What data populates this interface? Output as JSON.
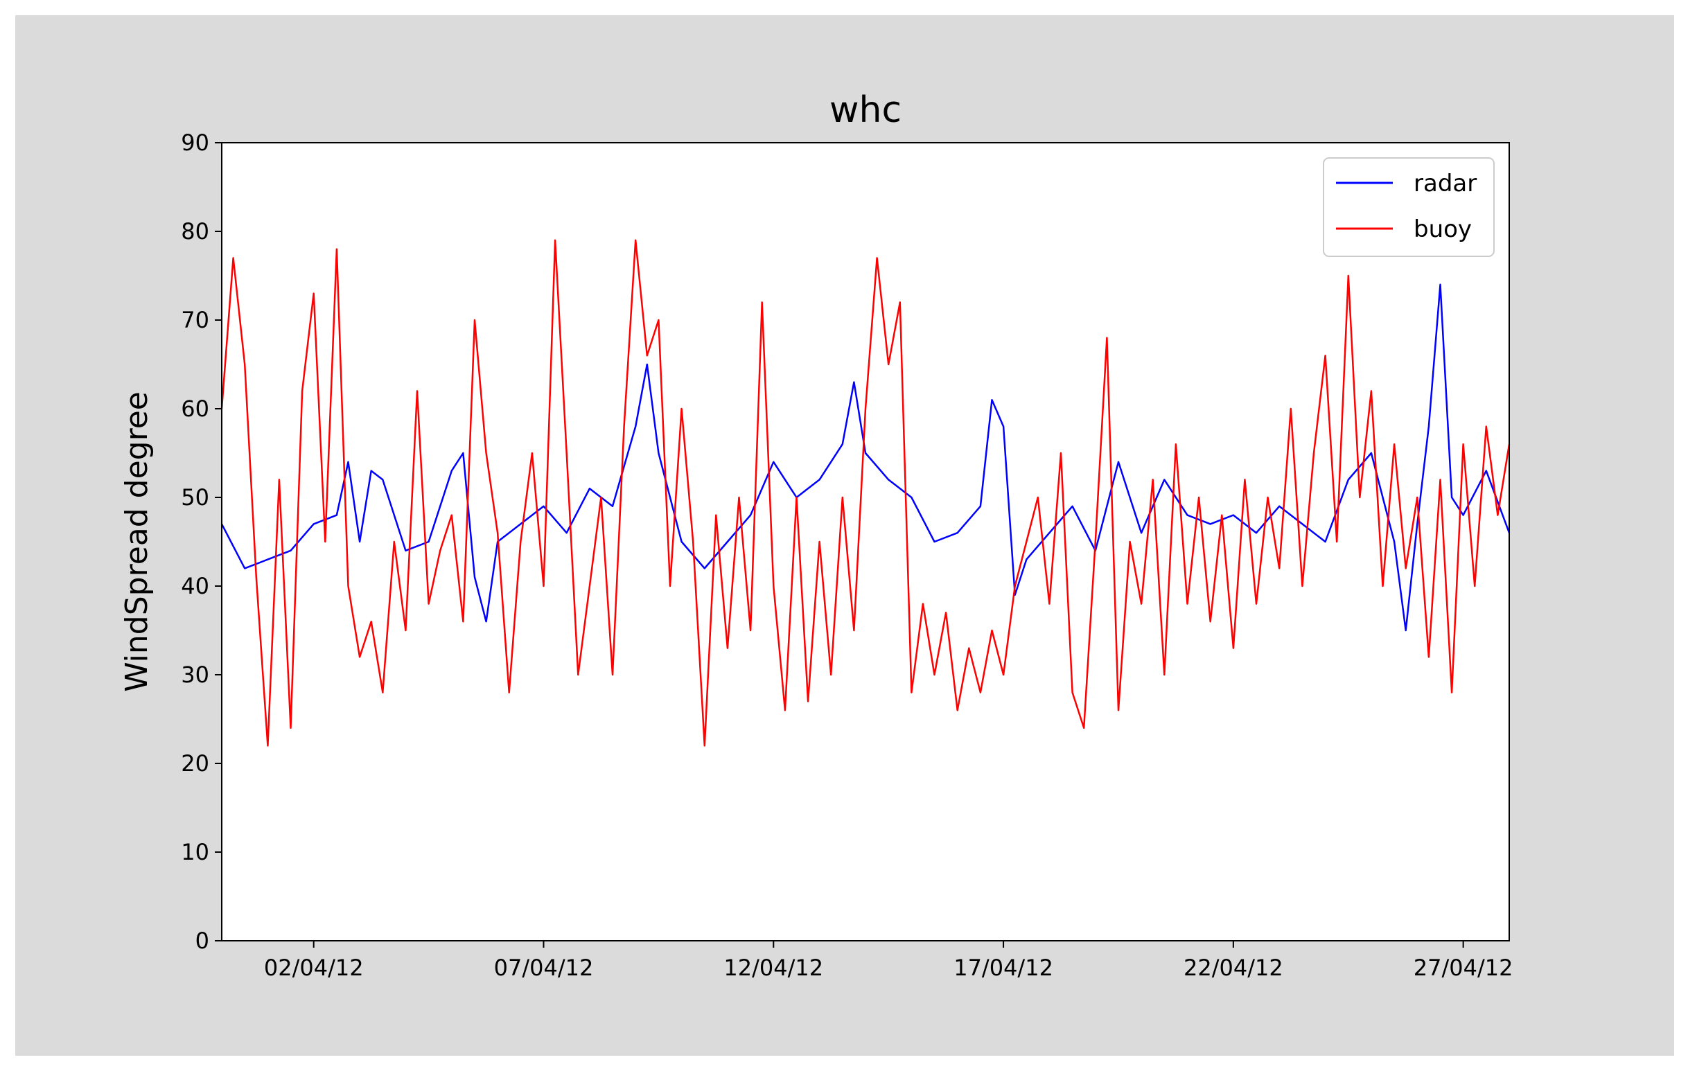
{
  "chart_data": {
    "type": "line",
    "title": "whc",
    "xlabel": "",
    "ylabel": "WindSpread degree",
    "x_axis": {
      "type": "date",
      "range": [
        "2012-03-31T00:00",
        "2012-04-28T00:00"
      ],
      "ticks": [
        {
          "date": "2012-04-02",
          "label": "02/04/12"
        },
        {
          "date": "2012-04-07",
          "label": "07/04/12"
        },
        {
          "date": "2012-04-12",
          "label": "12/04/12"
        },
        {
          "date": "2012-04-17",
          "label": "17/04/12"
        },
        {
          "date": "2012-04-22",
          "label": "22/04/12"
        },
        {
          "date": "2012-04-27",
          "label": "27/04/12"
        }
      ]
    },
    "ylim": [
      0,
      90
    ],
    "yticks": [
      "0",
      "10",
      "20",
      "30",
      "40",
      "50",
      "60",
      "70",
      "80",
      "90"
    ],
    "grid": false,
    "legend": {
      "position": "top-right",
      "entries": [
        "radar",
        "buoy"
      ]
    },
    "series": [
      {
        "name": "radar",
        "color": "#0000ff",
        "points": [
          [
            "2012-03-31T00:00",
            47
          ],
          [
            "2012-03-31T12:00",
            42
          ],
          [
            "2012-04-01T00:00",
            43
          ],
          [
            "2012-04-01T12:00",
            44
          ],
          [
            "2012-04-02T00:00",
            47
          ],
          [
            "2012-04-02T12:00",
            48
          ],
          [
            "2012-04-02T18:00",
            54
          ],
          [
            "2012-04-03T00:00",
            45
          ],
          [
            "2012-04-03T06:00",
            53
          ],
          [
            "2012-04-03T12:00",
            52
          ],
          [
            "2012-04-04T00:00",
            44
          ],
          [
            "2012-04-04T12:00",
            45
          ],
          [
            "2012-04-05T00:00",
            53
          ],
          [
            "2012-04-05T06:00",
            55
          ],
          [
            "2012-04-05T12:00",
            41
          ],
          [
            "2012-04-05T18:00",
            36
          ],
          [
            "2012-04-06T00:00",
            45
          ],
          [
            "2012-04-06T12:00",
            47
          ],
          [
            "2012-04-07T00:00",
            49
          ],
          [
            "2012-04-07T12:00",
            46
          ],
          [
            "2012-04-08T00:00",
            51
          ],
          [
            "2012-04-08T12:00",
            49
          ],
          [
            "2012-04-09T00:00",
            58
          ],
          [
            "2012-04-09T06:00",
            65
          ],
          [
            "2012-04-09T12:00",
            55
          ],
          [
            "2012-04-10T00:00",
            45
          ],
          [
            "2012-04-10T12:00",
            42
          ],
          [
            "2012-04-11T00:00",
            45
          ],
          [
            "2012-04-11T12:00",
            48
          ],
          [
            "2012-04-12T00:00",
            54
          ],
          [
            "2012-04-12T12:00",
            50
          ],
          [
            "2012-04-13T00:00",
            52
          ],
          [
            "2012-04-13T12:00",
            56
          ],
          [
            "2012-04-13T18:00",
            63
          ],
          [
            "2012-04-14T00:00",
            55
          ],
          [
            "2012-04-14T12:00",
            52
          ],
          [
            "2012-04-15T00:00",
            50
          ],
          [
            "2012-04-15T12:00",
            45
          ],
          [
            "2012-04-16T00:00",
            46
          ],
          [
            "2012-04-16T12:00",
            49
          ],
          [
            "2012-04-16T18:00",
            61
          ],
          [
            "2012-04-17T00:00",
            58
          ],
          [
            "2012-04-17T06:00",
            39
          ],
          [
            "2012-04-17T12:00",
            43
          ],
          [
            "2012-04-18T00:00",
            46
          ],
          [
            "2012-04-18T12:00",
            49
          ],
          [
            "2012-04-19T00:00",
            44
          ],
          [
            "2012-04-19T12:00",
            54
          ],
          [
            "2012-04-20T00:00",
            46
          ],
          [
            "2012-04-20T12:00",
            52
          ],
          [
            "2012-04-21T00:00",
            48
          ],
          [
            "2012-04-21T12:00",
            47
          ],
          [
            "2012-04-22T00:00",
            48
          ],
          [
            "2012-04-22T12:00",
            46
          ],
          [
            "2012-04-23T00:00",
            49
          ],
          [
            "2012-04-23T12:00",
            47
          ],
          [
            "2012-04-24T00:00",
            45
          ],
          [
            "2012-04-24T12:00",
            52
          ],
          [
            "2012-04-25T00:00",
            55
          ],
          [
            "2012-04-25T12:00",
            45
          ],
          [
            "2012-04-25T18:00",
            35
          ],
          [
            "2012-04-26T00:00",
            47
          ],
          [
            "2012-04-26T06:00",
            58
          ],
          [
            "2012-04-26T12:00",
            74
          ],
          [
            "2012-04-26T18:00",
            50
          ],
          [
            "2012-04-27T00:00",
            48
          ],
          [
            "2012-04-27T12:00",
            53
          ],
          [
            "2012-04-28T00:00",
            46
          ]
        ]
      },
      {
        "name": "buoy",
        "color": "#ff0000",
        "points": [
          [
            "2012-03-31T00:00",
            60
          ],
          [
            "2012-03-31T06:00",
            77
          ],
          [
            "2012-03-31T12:00",
            65
          ],
          [
            "2012-03-31T18:00",
            41
          ],
          [
            "2012-04-01T00:00",
            22
          ],
          [
            "2012-04-01T06:00",
            52
          ],
          [
            "2012-04-01T12:00",
            24
          ],
          [
            "2012-04-01T18:00",
            62
          ],
          [
            "2012-04-02T00:00",
            73
          ],
          [
            "2012-04-02T06:00",
            45
          ],
          [
            "2012-04-02T12:00",
            78
          ],
          [
            "2012-04-02T18:00",
            40
          ],
          [
            "2012-04-03T00:00",
            32
          ],
          [
            "2012-04-03T06:00",
            36
          ],
          [
            "2012-04-03T12:00",
            28
          ],
          [
            "2012-04-03T18:00",
            45
          ],
          [
            "2012-04-04T00:00",
            35
          ],
          [
            "2012-04-04T06:00",
            62
          ],
          [
            "2012-04-04T12:00",
            38
          ],
          [
            "2012-04-04T18:00",
            44
          ],
          [
            "2012-04-05T00:00",
            48
          ],
          [
            "2012-04-05T06:00",
            36
          ],
          [
            "2012-04-05T12:00",
            70
          ],
          [
            "2012-04-05T18:00",
            55
          ],
          [
            "2012-04-06T00:00",
            46
          ],
          [
            "2012-04-06T06:00",
            28
          ],
          [
            "2012-04-06T12:00",
            45
          ],
          [
            "2012-04-06T18:00",
            55
          ],
          [
            "2012-04-07T00:00",
            40
          ],
          [
            "2012-04-07T06:00",
            79
          ],
          [
            "2012-04-07T12:00",
            55
          ],
          [
            "2012-04-07T18:00",
            30
          ],
          [
            "2012-04-08T00:00",
            40
          ],
          [
            "2012-04-08T06:00",
            50
          ],
          [
            "2012-04-08T12:00",
            30
          ],
          [
            "2012-04-08T18:00",
            58
          ],
          [
            "2012-04-09T00:00",
            79
          ],
          [
            "2012-04-09T06:00",
            66
          ],
          [
            "2012-04-09T12:00",
            70
          ],
          [
            "2012-04-09T18:00",
            40
          ],
          [
            "2012-04-10T00:00",
            60
          ],
          [
            "2012-04-10T06:00",
            45
          ],
          [
            "2012-04-10T12:00",
            22
          ],
          [
            "2012-04-10T18:00",
            48
          ],
          [
            "2012-04-11T00:00",
            33
          ],
          [
            "2012-04-11T06:00",
            50
          ],
          [
            "2012-04-11T12:00",
            35
          ],
          [
            "2012-04-11T18:00",
            72
          ],
          [
            "2012-04-12T00:00",
            40
          ],
          [
            "2012-04-12T06:00",
            26
          ],
          [
            "2012-04-12T12:00",
            50
          ],
          [
            "2012-04-12T18:00",
            27
          ],
          [
            "2012-04-13T00:00",
            45
          ],
          [
            "2012-04-13T06:00",
            30
          ],
          [
            "2012-04-13T12:00",
            50
          ],
          [
            "2012-04-13T18:00",
            35
          ],
          [
            "2012-04-14T00:00",
            60
          ],
          [
            "2012-04-14T06:00",
            77
          ],
          [
            "2012-04-14T12:00",
            65
          ],
          [
            "2012-04-14T18:00",
            72
          ],
          [
            "2012-04-15T00:00",
            28
          ],
          [
            "2012-04-15T06:00",
            38
          ],
          [
            "2012-04-15T12:00",
            30
          ],
          [
            "2012-04-15T18:00",
            37
          ],
          [
            "2012-04-16T00:00",
            26
          ],
          [
            "2012-04-16T06:00",
            33
          ],
          [
            "2012-04-16T12:00",
            28
          ],
          [
            "2012-04-16T18:00",
            35
          ],
          [
            "2012-04-17T00:00",
            30
          ],
          [
            "2012-04-17T06:00",
            40
          ],
          [
            "2012-04-17T12:00",
            45
          ],
          [
            "2012-04-17T18:00",
            50
          ],
          [
            "2012-04-18T00:00",
            38
          ],
          [
            "2012-04-18T06:00",
            55
          ],
          [
            "2012-04-18T12:00",
            28
          ],
          [
            "2012-04-18T18:00",
            24
          ],
          [
            "2012-04-19T00:00",
            45
          ],
          [
            "2012-04-19T06:00",
            68
          ],
          [
            "2012-04-19T12:00",
            26
          ],
          [
            "2012-04-19T18:00",
            45
          ],
          [
            "2012-04-20T00:00",
            38
          ],
          [
            "2012-04-20T06:00",
            52
          ],
          [
            "2012-04-20T12:00",
            30
          ],
          [
            "2012-04-20T18:00",
            56
          ],
          [
            "2012-04-21T00:00",
            38
          ],
          [
            "2012-04-21T06:00",
            50
          ],
          [
            "2012-04-21T12:00",
            36
          ],
          [
            "2012-04-21T18:00",
            48
          ],
          [
            "2012-04-22T00:00",
            33
          ],
          [
            "2012-04-22T06:00",
            52
          ],
          [
            "2012-04-22T12:00",
            38
          ],
          [
            "2012-04-22T18:00",
            50
          ],
          [
            "2012-04-23T00:00",
            42
          ],
          [
            "2012-04-23T06:00",
            60
          ],
          [
            "2012-04-23T12:00",
            40
          ],
          [
            "2012-04-23T18:00",
            55
          ],
          [
            "2012-04-24T00:00",
            66
          ],
          [
            "2012-04-24T06:00",
            45
          ],
          [
            "2012-04-24T12:00",
            75
          ],
          [
            "2012-04-24T18:00",
            50
          ],
          [
            "2012-04-25T00:00",
            62
          ],
          [
            "2012-04-25T06:00",
            40
          ],
          [
            "2012-04-25T12:00",
            56
          ],
          [
            "2012-04-25T18:00",
            42
          ],
          [
            "2012-04-26T00:00",
            50
          ],
          [
            "2012-04-26T06:00",
            32
          ],
          [
            "2012-04-26T12:00",
            52
          ],
          [
            "2012-04-26T18:00",
            28
          ],
          [
            "2012-04-27T00:00",
            56
          ],
          [
            "2012-04-27T06:00",
            40
          ],
          [
            "2012-04-27T12:00",
            58
          ],
          [
            "2012-04-27T18:00",
            48
          ],
          [
            "2012-04-28T00:00",
            56
          ]
        ]
      }
    ]
  }
}
